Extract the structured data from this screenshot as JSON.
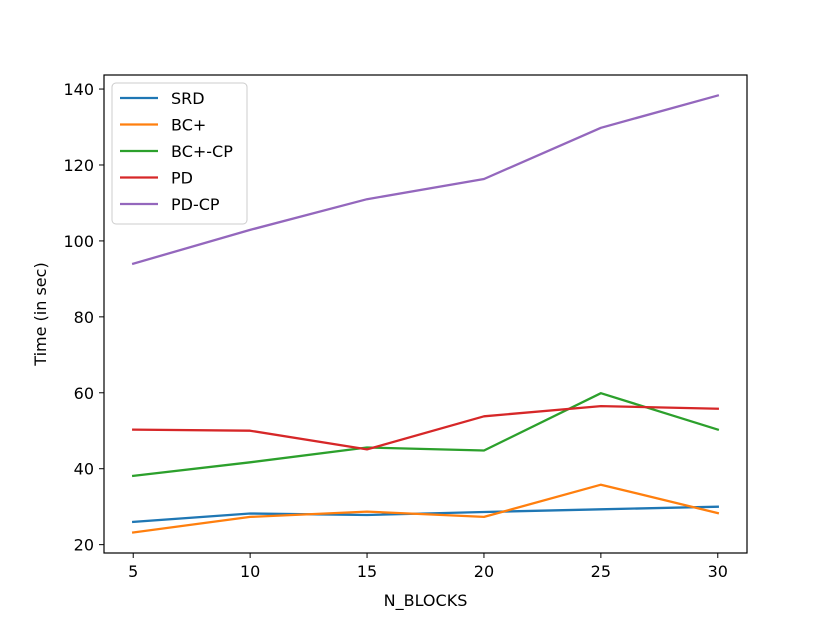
{
  "chart_data": {
    "type": "line",
    "title": "",
    "xlabel": "N_BLOCKS",
    "ylabel": "Time (in sec)",
    "x": [
      5,
      10,
      15,
      20,
      25,
      30
    ],
    "xlim": [
      3.75,
      31.25
    ],
    "ylim": [
      17.8,
      143.7
    ],
    "xticks": [
      5,
      10,
      15,
      20,
      25,
      30
    ],
    "yticks": [
      20,
      40,
      60,
      80,
      100,
      120,
      140
    ],
    "grid": false,
    "legend_position": "upper-left",
    "series": [
      {
        "name": "SRD",
        "color": "#1f77b4",
        "values": [
          26.0,
          28.2,
          27.8,
          28.6,
          29.3,
          30.0
        ]
      },
      {
        "name": "BC+",
        "color": "#ff7f0e",
        "values": [
          23.2,
          27.3,
          28.7,
          27.3,
          35.8,
          28.3
        ]
      },
      {
        "name": "BC+-CP",
        "color": "#2ca02c",
        "values": [
          38.1,
          41.7,
          45.6,
          44.8,
          59.9,
          50.3
        ]
      },
      {
        "name": "PD",
        "color": "#d62728",
        "values": [
          50.3,
          50.0,
          45.1,
          53.8,
          56.5,
          55.8
        ]
      },
      {
        "name": "PD-CP",
        "color": "#9467bd",
        "values": [
          94.0,
          102.9,
          111.0,
          116.3,
          129.8,
          138.3
        ]
      }
    ]
  }
}
